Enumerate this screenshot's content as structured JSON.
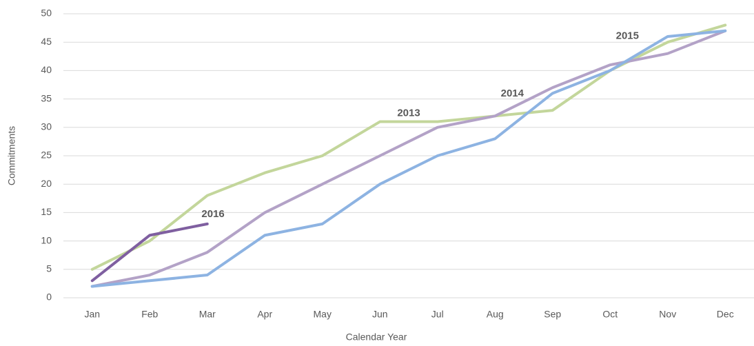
{
  "chart_data": {
    "type": "line",
    "x_label": "Calendar Year",
    "y_label": "Commitments",
    "categories": [
      "Jan",
      "Feb",
      "Mar",
      "Apr",
      "May",
      "Jun",
      "Jul",
      "Aug",
      "Sep",
      "Oct",
      "Nov",
      "Dec"
    ],
    "series": [
      {
        "name": "2013",
        "color": "#c3d69b",
        "values": [
          5,
          10,
          18,
          22,
          25,
          31,
          31,
          32,
          33,
          40,
          45,
          48
        ]
      },
      {
        "name": "2014",
        "color": "#b3a2c7",
        "values": [
          2,
          4,
          8,
          15,
          20,
          25,
          30,
          32,
          37,
          41,
          43,
          47
        ]
      },
      {
        "name": "2015",
        "color": "#8db3e2",
        "values": [
          2,
          3,
          4,
          11,
          13,
          20,
          25,
          28,
          36,
          40,
          46,
          47
        ]
      },
      {
        "name": "2016",
        "color": "#7f5fa0",
        "values": [
          3,
          11,
          13,
          null,
          null,
          null,
          null,
          null,
          null,
          null,
          null,
          null
        ]
      }
    ],
    "ylim": [
      0,
      50
    ],
    "yticks": [
      0,
      5,
      10,
      15,
      20,
      25,
      30,
      35,
      40,
      45,
      50
    ],
    "grid": true
  }
}
